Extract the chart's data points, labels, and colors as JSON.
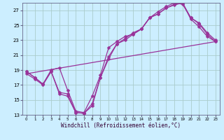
{
  "xlabel": "Windchill (Refroidissement éolien,°C)",
  "background_color": "#cceeff",
  "grid_color": "#aacccc",
  "line_color": "#993399",
  "xlim": [
    -0.5,
    23.5
  ],
  "ylim": [
    13,
    28
  ],
  "yticks": [
    13,
    15,
    17,
    19,
    21,
    23,
    25,
    27
  ],
  "xticks": [
    0,
    1,
    2,
    3,
    4,
    5,
    6,
    7,
    8,
    9,
    10,
    11,
    12,
    13,
    14,
    15,
    16,
    17,
    18,
    19,
    20,
    21,
    22,
    23
  ],
  "series1": {
    "x": [
      0,
      1,
      2,
      3,
      4,
      5,
      6,
      7,
      8,
      9,
      10,
      11,
      12,
      13,
      14,
      15,
      16,
      17,
      18,
      19,
      20,
      21,
      22,
      23
    ],
    "y": [
      18.8,
      18.0,
      17.1,
      19.0,
      19.3,
      16.3,
      13.5,
      13.3,
      15.5,
      18.3,
      22.0,
      22.8,
      23.5,
      23.8,
      24.5,
      26.0,
      26.8,
      27.5,
      28.0,
      27.8,
      26.0,
      25.3,
      24.0,
      23.0
    ]
  },
  "series2": {
    "x": [
      0,
      1,
      2,
      3,
      4,
      5,
      6,
      7,
      8,
      9,
      10,
      11,
      12,
      13,
      14,
      15,
      16,
      17,
      18,
      19,
      20,
      21,
      22,
      23
    ],
    "y": [
      18.8,
      18.0,
      17.1,
      18.8,
      16.0,
      15.8,
      13.3,
      13.2,
      14.5,
      18.0,
      20.8,
      22.5,
      23.2,
      24.0,
      24.5,
      26.0,
      26.5,
      27.3,
      27.7,
      28.0,
      26.0,
      25.2,
      23.8,
      22.8
    ]
  },
  "series3": {
    "x": [
      0,
      1,
      2,
      3,
      4,
      5,
      6,
      7,
      8,
      9,
      10,
      11,
      12,
      13,
      14,
      15,
      16,
      17,
      18,
      19,
      20,
      21,
      22,
      23
    ],
    "y": [
      18.5,
      17.8,
      17.0,
      18.8,
      15.8,
      15.5,
      13.3,
      13.2,
      14.2,
      18.0,
      20.5,
      22.5,
      23.0,
      23.8,
      24.5,
      26.0,
      26.5,
      27.3,
      27.8,
      28.0,
      25.8,
      24.8,
      23.5,
      22.8
    ]
  },
  "ref_line": {
    "x": [
      0,
      23
    ],
    "y": [
      18.5,
      22.8
    ]
  },
  "markersize": 2.5,
  "linewidth": 0.9
}
